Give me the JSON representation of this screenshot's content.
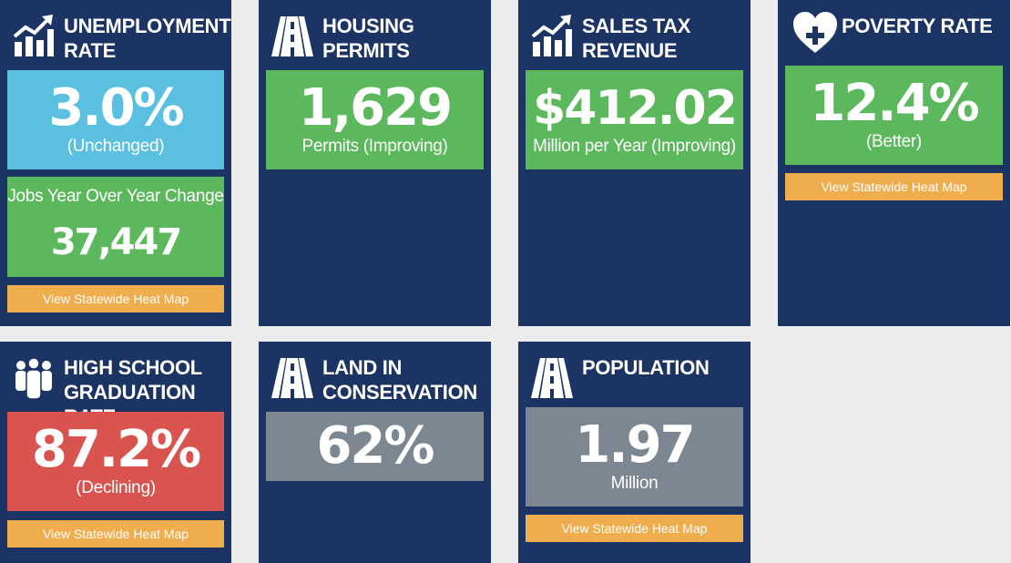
{
  "heatmap_label": "View Statewide Heat Map",
  "colors": {
    "card_bg": "#1b3464",
    "page_bg": "#ececec",
    "stat_blue": "#5bc0e0",
    "stat_green": "#5cb85c",
    "stat_gray": "#7d8791",
    "stat_red": "#d9534f",
    "button_orange": "#f0ad4e"
  },
  "unemployment": {
    "icon": "trending-bar-chart-icon",
    "title_line1": "UNEMPLOYMENT",
    "title_line2": "RATE",
    "rate": {
      "value": "3.0%",
      "sub": "(Unchanged)"
    },
    "jobs": {
      "label": "Jobs Year Over Year Change",
      "value": "37,447"
    }
  },
  "housing": {
    "icon": "road-icon",
    "title_line1": "HOUSING",
    "title_line2": "PERMITS",
    "stat": {
      "value": "1,629",
      "sub": "Permits (Improving)"
    }
  },
  "sales_tax": {
    "icon": "trending-bar-chart-icon",
    "title_line1": "SALES TAX",
    "title_line2": "REVENUE",
    "stat": {
      "value": "$412.02",
      "sub": "Million per Year (Improving)"
    }
  },
  "poverty": {
    "icon": "heart-plus-icon",
    "title_line1": "POVERTY RATE",
    "stat": {
      "value": "12.4%",
      "sub": "(Better)"
    }
  },
  "graduation": {
    "icon": "people-icon",
    "title_line1": "HIGH SCHOOL",
    "title_line2": "GRADUATION RATE",
    "stat": {
      "value": "87.2%",
      "sub": "(Declining)"
    }
  },
  "conservation": {
    "icon": "road-icon",
    "title_line1": "LAND IN",
    "title_line2": "CONSERVATION",
    "stat": {
      "value": "62%"
    }
  },
  "population": {
    "icon": "road-icon",
    "title_line1": "POPULATION",
    "stat": {
      "value": "1.97",
      "sub": "Million"
    }
  }
}
